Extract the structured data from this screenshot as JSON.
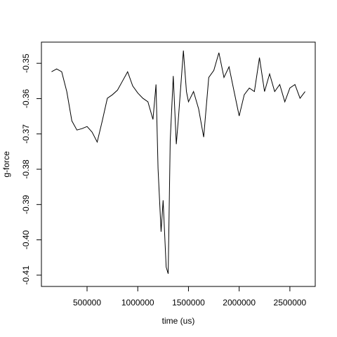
{
  "chart_data": {
    "type": "line",
    "x_label": "time (us)",
    "y_label": "g-force",
    "x": [
      150000,
      200000,
      250000,
      300000,
      350000,
      400000,
      450000,
      500000,
      550000,
      600000,
      650000,
      700000,
      750000,
      800000,
      850000,
      900000,
      950000,
      1000000,
      1050000,
      1100000,
      1150000,
      1180000,
      1200000,
      1230000,
      1250000,
      1280000,
      1300000,
      1320000,
      1350000,
      1380000,
      1400000,
      1450000,
      1480000,
      1500000,
      1550000,
      1600000,
      1650000,
      1700000,
      1750000,
      1800000,
      1850000,
      1900000,
      1950000,
      2000000,
      2050000,
      2100000,
      2150000,
      2200000,
      2250000,
      2300000,
      2350000,
      2400000,
      2450000,
      2500000,
      2550000,
      2600000,
      2650000
    ],
    "series": [
      {
        "color": "#000000",
        "values": [
          -0.3524,
          -0.3516,
          -0.3524,
          -0.358,
          -0.3663,
          -0.3689,
          -0.3685,
          -0.3679,
          -0.3695,
          -0.3723,
          -0.3663,
          -0.3599,
          -0.3589,
          -0.3576,
          -0.355,
          -0.3524,
          -0.3564,
          -0.3584,
          -0.3599,
          -0.3609,
          -0.3659,
          -0.356,
          -0.3798,
          -0.3977,
          -0.3888,
          -0.4077,
          -0.4096,
          -0.3719,
          -0.3536,
          -0.3729,
          -0.3659,
          -0.3464,
          -0.358,
          -0.3609,
          -0.358,
          -0.3629,
          -0.3709,
          -0.354,
          -0.352,
          -0.347,
          -0.354,
          -0.351,
          -0.358,
          -0.3649,
          -0.3589,
          -0.357,
          -0.358,
          -0.3484,
          -0.358,
          -0.353,
          -0.358,
          -0.356,
          -0.3609,
          -0.357,
          -0.356,
          -0.3599,
          -0.358
        ]
      }
    ],
    "xlim": [
      50000,
      2750000
    ],
    "xticks": [
      500000,
      1000000,
      1500000,
      2000000,
      2500000
    ],
    "ylim": [
      -0.4132,
      -0.344
    ],
    "yticks": [
      -0.35,
      -0.36,
      -0.37,
      -0.38,
      -0.39,
      {
        "value": -0.4,
        "label": "-0.40"
      },
      -0.41
    ]
  }
}
